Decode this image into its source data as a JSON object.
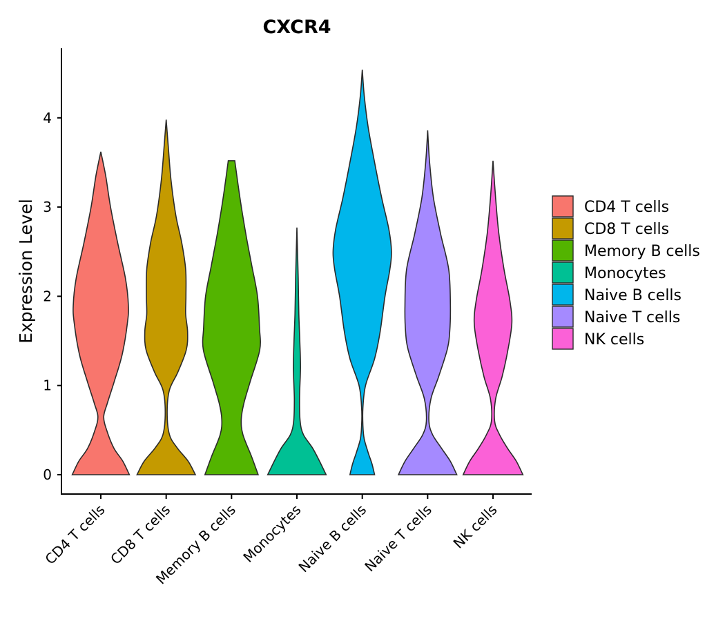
{
  "chart_data": {
    "type": "violin",
    "title": "CXCR4",
    "xlabel": "",
    "ylabel": "Expression Level",
    "ylim": [
      -0.22,
      4.7
    ],
    "yticks": [
      0,
      1,
      2,
      3,
      4
    ],
    "legend_position": "right",
    "categories": [
      "CD4 T cells",
      "CD8 T cells",
      "Memory B cells",
      "Monocytes",
      "Naive B cells",
      "Naive T cells",
      "NK cells"
    ],
    "series": [
      {
        "name": "CD4 T cells",
        "color": "#F8766D",
        "max": 3.62,
        "profile": [
          [
            0,
            0.88
          ],
          [
            0.15,
            0.68
          ],
          [
            0.3,
            0.4
          ],
          [
            0.5,
            0.18
          ],
          [
            0.65,
            0.09
          ],
          [
            0.8,
            0.2
          ],
          [
            1.05,
            0.42
          ],
          [
            1.35,
            0.66
          ],
          [
            1.7,
            0.82
          ],
          [
            1.9,
            0.85
          ],
          [
            2.2,
            0.76
          ],
          [
            2.6,
            0.52
          ],
          [
            3.0,
            0.3
          ],
          [
            3.35,
            0.15
          ],
          [
            3.62,
            0.0
          ]
        ]
      },
      {
        "name": "CD8 T cells",
        "color": "#C49A00",
        "max": 3.98,
        "profile": [
          [
            0,
            0.9
          ],
          [
            0.15,
            0.68
          ],
          [
            0.3,
            0.34
          ],
          [
            0.45,
            0.1
          ],
          [
            0.7,
            0.03
          ],
          [
            0.95,
            0.1
          ],
          [
            1.15,
            0.36
          ],
          [
            1.4,
            0.62
          ],
          [
            1.6,
            0.66
          ],
          [
            1.8,
            0.6
          ],
          [
            2.0,
            0.61
          ],
          [
            2.3,
            0.6
          ],
          [
            2.6,
            0.48
          ],
          [
            2.9,
            0.3
          ],
          [
            3.3,
            0.15
          ],
          [
            3.7,
            0.06
          ],
          [
            3.98,
            0.0
          ]
        ]
      },
      {
        "name": "Memory B cells",
        "color": "#53B400",
        "max": 3.52,
        "profile": [
          [
            0,
            0.82
          ],
          [
            0.2,
            0.62
          ],
          [
            0.45,
            0.35
          ],
          [
            0.62,
            0.3
          ],
          [
            0.8,
            0.38
          ],
          [
            1.05,
            0.58
          ],
          [
            1.4,
            0.87
          ],
          [
            1.65,
            0.86
          ],
          [
            2.0,
            0.8
          ],
          [
            2.35,
            0.62
          ],
          [
            2.7,
            0.44
          ],
          [
            3.1,
            0.26
          ],
          [
            3.52,
            0.1
          ]
        ]
      },
      {
        "name": "Monocytes",
        "color": "#00C094",
        "max": 2.77,
        "profile": [
          [
            0,
            0.9
          ],
          [
            0.15,
            0.7
          ],
          [
            0.3,
            0.48
          ],
          [
            0.45,
            0.2
          ],
          [
            0.6,
            0.1
          ],
          [
            0.85,
            0.08
          ],
          [
            1.2,
            0.11
          ],
          [
            1.5,
            0.09
          ],
          [
            1.8,
            0.06
          ],
          [
            2.2,
            0.04
          ],
          [
            2.5,
            0.02
          ],
          [
            2.77,
            0.0
          ]
        ]
      },
      {
        "name": "Naive B cells",
        "color": "#00B6EB",
        "max": 4.54,
        "profile": [
          [
            0,
            0.38
          ],
          [
            0.12,
            0.3
          ],
          [
            0.25,
            0.18
          ],
          [
            0.4,
            0.06
          ],
          [
            0.55,
            0.02
          ],
          [
            0.75,
            0.02
          ],
          [
            1.0,
            0.1
          ],
          [
            1.3,
            0.38
          ],
          [
            1.6,
            0.55
          ],
          [
            2.0,
            0.7
          ],
          [
            2.3,
            0.85
          ],
          [
            2.5,
            0.9
          ],
          [
            2.75,
            0.82
          ],
          [
            3.1,
            0.6
          ],
          [
            3.5,
            0.38
          ],
          [
            3.9,
            0.18
          ],
          [
            4.25,
            0.06
          ],
          [
            4.54,
            0.0
          ]
        ]
      },
      {
        "name": "Naive T cells",
        "color": "#A58AFF",
        "max": 3.86,
        "profile": [
          [
            0,
            0.9
          ],
          [
            0.15,
            0.7
          ],
          [
            0.3,
            0.42
          ],
          [
            0.45,
            0.15
          ],
          [
            0.6,
            0.04
          ],
          [
            0.85,
            0.1
          ],
          [
            1.1,
            0.34
          ],
          [
            1.4,
            0.6
          ],
          [
            1.6,
            0.68
          ],
          [
            1.9,
            0.7
          ],
          [
            2.3,
            0.65
          ],
          [
            2.7,
            0.4
          ],
          [
            3.1,
            0.18
          ],
          [
            3.5,
            0.06
          ],
          [
            3.86,
            0.0
          ]
        ]
      },
      {
        "name": "NK cells",
        "color": "#FB61D7",
        "max": 3.52,
        "profile": [
          [
            0,
            0.92
          ],
          [
            0.15,
            0.72
          ],
          [
            0.3,
            0.44
          ],
          [
            0.45,
            0.2
          ],
          [
            0.6,
            0.05
          ],
          [
            0.85,
            0.08
          ],
          [
            1.1,
            0.28
          ],
          [
            1.4,
            0.46
          ],
          [
            1.7,
            0.58
          ],
          [
            1.95,
            0.52
          ],
          [
            2.3,
            0.34
          ],
          [
            2.7,
            0.18
          ],
          [
            3.1,
            0.08
          ],
          [
            3.52,
            0.0
          ]
        ]
      }
    ]
  }
}
